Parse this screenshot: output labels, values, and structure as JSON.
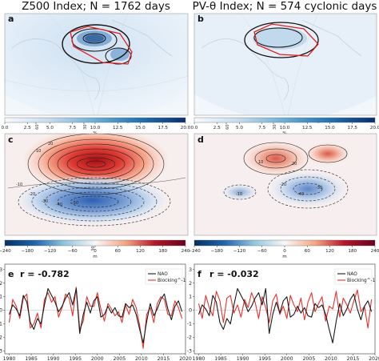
{
  "titles": {
    "left": "Z500 Index; N = 1762 days",
    "right": "PV-θ Index; N = 574 cyclonic days"
  },
  "panel_letters": {
    "a": "a",
    "b": "b",
    "c": "c",
    "d": "d",
    "e": "e",
    "f": "f"
  },
  "map_labels": {
    "a": [
      "60°W",
      "30°W",
      "0°"
    ],
    "b": [
      "60°W",
      "30°W",
      "0°"
    ],
    "c": [
      "60°W",
      "30°W",
      "0°"
    ],
    "d": [
      "60°W",
      "30°W",
      "0°"
    ]
  },
  "contour_labels": {
    "c": [
      "20",
      "10",
      "-10",
      "-20",
      "-30",
      "-40",
      "-50"
    ],
    "d": [
      "10",
      "20",
      "-20",
      "-30",
      "-40",
      "-10"
    ]
  },
  "colorbar_freq": {
    "ticks": [
      "0.0",
      "2.5",
      "5.0",
      "7.5",
      "10.0",
      "12.5",
      "15.0",
      "17.5",
      "20.0"
    ],
    "unit": "%",
    "range": [
      0,
      20
    ],
    "colormap": "Blues"
  },
  "colorbar_anom": {
    "ticks": [
      "−240",
      "−180",
      "−120",
      "−60",
      "0",
      "60",
      "120",
      "180",
      "240"
    ],
    "unit": "m",
    "range": [
      -240,
      240
    ],
    "colormap": "RdBu_r (blue-white-red)"
  },
  "colors": {
    "nao": "#1a1a1a",
    "blocking": "#e8312a",
    "box": "#e02020",
    "map_bg": "#e9f1f9"
  },
  "chart_data": [
    {
      "panel": "e",
      "type": "line",
      "correlation_label": "r = -0.782",
      "legend": [
        "NAO",
        "Blocking^-1"
      ],
      "legend_position": "top-right",
      "xlim": [
        1979,
        2020
      ],
      "ylim": [
        -3.2,
        3.4
      ],
      "xticks": [
        1980,
        1985,
        1990,
        1995,
        2000,
        2005,
        2010,
        2015,
        2020
      ],
      "yticks": [
        -3,
        -2,
        -1,
        0,
        1,
        2,
        3
      ],
      "x": [
        1980.0,
        1980.8,
        1981.6,
        1982.4,
        1983.2,
        1984.0,
        1984.8,
        1985.6,
        1986.4,
        1987.2,
        1988.0,
        1988.8,
        1989.6,
        1990.4,
        1991.2,
        1992.0,
        1992.8,
        1993.6,
        1994.4,
        1995.2,
        1996.0,
        1996.8,
        1997.6,
        1998.4,
        1999.2,
        2000.0,
        2000.8,
        2001.6,
        2002.4,
        2003.2,
        2004.0,
        2004.8,
        2005.6,
        2006.4,
        2007.2,
        2008.0,
        2008.8,
        2009.6,
        2010.4,
        2011.2,
        2012.0,
        2012.8,
        2013.6,
        2014.4,
        2015.2,
        2016.0,
        2016.8,
        2017.6,
        2018.4,
        2019.2
      ],
      "series": [
        {
          "name": "NAO",
          "values": [
            -0.3,
            0.4,
            0.1,
            -0.4,
            1.1,
            0.6,
            -0.9,
            -1.4,
            -0.6,
            -1.0,
            0.4,
            1.6,
            1.1,
            0.6,
            -0.1,
            0.3,
            0.9,
            1.3,
            0.4,
            1.6,
            -1.7,
            -0.3,
            0.6,
            -0.2,
            0.7,
            1.0,
            -0.5,
            -0.3,
            0.3,
            -0.2,
            0.2,
            -0.4,
            -0.5,
            0.5,
            0.2,
            0.4,
            -0.3,
            -1.4,
            -2.4,
            -0.8,
            0.5,
            -0.4,
            0.1,
            0.8,
            1.2,
            0.1,
            -0.7,
            0.3,
            0.7,
            -0.1
          ]
        },
        {
          "name": "Blocking^-1",
          "values": [
            -0.9,
            0.8,
            0.3,
            -0.6,
            0.9,
            1.2,
            -1.3,
            -1.0,
            -0.2,
            -1.3,
            0.8,
            1.3,
            0.6,
            1.0,
            -0.5,
            0.2,
            1.2,
            0.9,
            -0.4,
            1.7,
            -1.4,
            -0.8,
            1.0,
            0.3,
            0.3,
            1.3,
            0.1,
            -0.8,
            0.5,
            0.1,
            -0.4,
            -0.1,
            -0.9,
            0.4,
            -0.3,
            0.8,
            0.2,
            -1.1,
            -2.8,
            -0.3,
            0.2,
            -0.9,
            0.5,
            1.0,
            0.8,
            -0.3,
            -0.4,
            0.7,
            0.2,
            -0.6
          ]
        }
      ]
    },
    {
      "panel": "f",
      "type": "line",
      "correlation_label": "r = -0.032",
      "legend": [
        "NAO",
        "Blocking^-1"
      ],
      "legend_position": "top-right",
      "xlim": [
        1979,
        2020
      ],
      "ylim": [
        -3.2,
        3.4
      ],
      "xticks": [
        1980,
        1985,
        1990,
        1995,
        2000,
        2005,
        2010,
        2015,
        2020
      ],
      "yticks": [
        -3,
        -2,
        -1,
        0,
        1,
        2,
        3
      ],
      "x": [
        1980.0,
        1980.8,
        1981.6,
        1982.4,
        1983.2,
        1984.0,
        1984.8,
        1985.6,
        1986.4,
        1987.2,
        1988.0,
        1988.8,
        1989.6,
        1990.4,
        1991.2,
        1992.0,
        1992.8,
        1993.6,
        1994.4,
        1995.2,
        1996.0,
        1996.8,
        1997.6,
        1998.4,
        1999.2,
        2000.0,
        2000.8,
        2001.6,
        2002.4,
        2003.2,
        2004.0,
        2004.8,
        2005.6,
        2006.4,
        2007.2,
        2008.0,
        2008.8,
        2009.6,
        2010.4,
        2011.2,
        2012.0,
        2012.8,
        2013.6,
        2014.4,
        2015.2,
        2016.0,
        2016.8,
        2017.6,
        2018.4,
        2019.2
      ],
      "series": [
        {
          "name": "NAO",
          "values": [
            -0.3,
            0.4,
            0.1,
            -0.4,
            1.1,
            0.6,
            -0.9,
            -1.4,
            -0.6,
            -1.0,
            0.4,
            1.6,
            1.1,
            0.6,
            -0.1,
            0.3,
            0.9,
            1.3,
            0.4,
            1.6,
            -1.7,
            -0.3,
            0.6,
            -0.2,
            0.7,
            1.0,
            -0.5,
            -0.3,
            0.3,
            -0.2,
            0.2,
            -0.4,
            -0.5,
            0.5,
            0.2,
            0.4,
            -0.3,
            -1.4,
            -2.4,
            -0.8,
            0.5,
            -0.4,
            0.1,
            0.8,
            1.2,
            0.1,
            -0.7,
            0.3,
            0.7,
            -0.1
          ]
        },
        {
          "name": "Blocking^-1",
          "values": [
            0.5,
            -0.6,
            1.1,
            0.2,
            -0.4,
            1.4,
            0.7,
            -0.9,
            0.9,
            1.1,
            -0.2,
            0.4,
            -0.5,
            0.8,
            0.2,
            1.3,
            0.6,
            -0.6,
            1.0,
            0.2,
            -0.9,
            0.7,
            1.2,
            -0.3,
            0.3,
            -0.6,
            1.1,
            0.4,
            -0.1,
            0.9,
            -0.7,
            0.6,
            1.3,
            -0.1,
            0.5,
            1.0,
            -0.8,
            0.3,
            0.1,
            1.4,
            -0.5,
            0.9,
            0.4,
            -0.2,
            0.7,
            1.5,
            -0.1,
            0.3,
            -1.3,
            0.8
          ]
        }
      ]
    }
  ]
}
